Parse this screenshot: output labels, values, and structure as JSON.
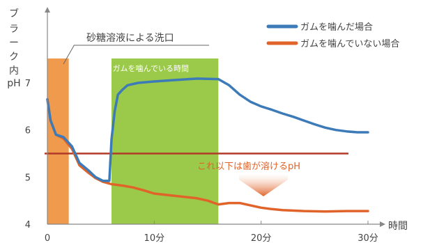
{
  "chart_data": {
    "type": "line",
    "ylabel": [
      "ブ",
      "ラ",
      "ー",
      "ク",
      "内",
      "pH"
    ],
    "xlabel": "時間",
    "x_ticks": [
      "0",
      "10分",
      "20分",
      "30分"
    ],
    "y_ticks": [
      "4",
      "5",
      "6",
      "7"
    ],
    "xlim": [
      0,
      30
    ],
    "ylim": [
      4,
      7.6
    ],
    "grid": false,
    "legend_position": "top-right",
    "series": [
      {
        "name": "ガムを噛んだ場合",
        "color": "#3d7ab8",
        "x": [
          0,
          0.3,
          0.8,
          1.5,
          2.3,
          3.0,
          3.8,
          4.5,
          5.2,
          5.8,
          6.0,
          6.3,
          6.6,
          7.0,
          7.5,
          8.5,
          10,
          12,
          14,
          16,
          17,
          18,
          19,
          20,
          21,
          22,
          23,
          24,
          25,
          26,
          27,
          28,
          29,
          30
        ],
        "y": [
          6.65,
          6.2,
          5.9,
          5.85,
          5.65,
          5.3,
          5.15,
          5.0,
          4.92,
          4.92,
          5.8,
          6.4,
          6.75,
          6.85,
          6.95,
          7.0,
          7.03,
          7.06,
          7.09,
          7.08,
          6.95,
          6.75,
          6.6,
          6.5,
          6.43,
          6.35,
          6.28,
          6.2,
          6.12,
          6.05,
          6.0,
          5.97,
          5.95,
          5.95
        ]
      },
      {
        "name": "ガムを噛んでいない場合",
        "color": "#e0642a",
        "x": [
          0,
          0.3,
          0.8,
          1.5,
          2.3,
          3.0,
          3.8,
          4.5,
          5.2,
          6.0,
          7.0,
          8.0,
          9.0,
          10,
          12,
          14,
          15,
          16,
          17,
          18,
          19,
          20,
          21,
          22,
          24,
          26,
          28,
          30
        ],
        "y": [
          6.65,
          6.2,
          5.9,
          5.82,
          5.6,
          5.25,
          5.1,
          4.98,
          4.9,
          4.85,
          4.82,
          4.78,
          4.72,
          4.65,
          4.6,
          4.55,
          4.5,
          4.42,
          4.45,
          4.45,
          4.4,
          4.35,
          4.32,
          4.3,
          4.28,
          4.27,
          4.28,
          4.28
        ]
      }
    ],
    "threshold": {
      "value": 5.5,
      "color": "#b23a28",
      "label": "これ以下は歯が溶けるpH"
    },
    "annotations": [
      {
        "label": "砂糖溶液による洗口",
        "x_range": [
          0,
          2
        ],
        "color": "#ef9a4c"
      },
      {
        "label": "ガムを噛んでいる時間",
        "x_range": [
          6,
          16
        ],
        "color": "#9bc94a"
      }
    ]
  }
}
